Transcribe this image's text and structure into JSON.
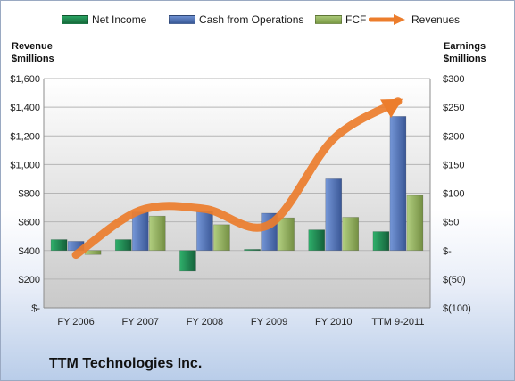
{
  "chart_data": {
    "type": "bar",
    "categories": [
      "FY 2006",
      "FY 2007",
      "FY 2008",
      "FY 2009",
      "FY 2010",
      "TTM 9-2011"
    ],
    "series": [
      {
        "name": "Net Income",
        "axis": "right",
        "values": [
          19,
          19,
          -36,
          2,
          36,
          33
        ]
      },
      {
        "name": "Cash from Operations",
        "axis": "right",
        "values": [
          16,
          67,
          68,
          65,
          125,
          234
        ]
      },
      {
        "name": "FCF",
        "axis": "right",
        "values": [
          -7,
          60,
          45,
          57,
          58,
          96
        ]
      },
      {
        "name": "Revenues",
        "axis": "left",
        "type": "line",
        "values": [
          370,
          680,
          690,
          580,
          1180,
          1440
        ]
      }
    ],
    "left_axis": {
      "label_line1": "Revenue",
      "label_line2": "$millions",
      "min": 0,
      "max": 1600,
      "step": 200,
      "ticks": [
        "$-",
        "$200",
        "$400",
        "$600",
        "$800",
        "$1,000",
        "$1,200",
        "$1,400",
        "$1,600"
      ]
    },
    "right_axis": {
      "label_line1": "Earnings",
      "label_line2": "$millions",
      "min": -100,
      "max": 300,
      "step": 50,
      "ticks": [
        "$(100)",
        "$(50)",
        "$-",
        "$50",
        "$100",
        "$150",
        "$200",
        "$250",
        "$300"
      ]
    },
    "legend_position": "top",
    "grid": true
  },
  "company": "TTM Technologies Inc.",
  "colors": {
    "net_income": "#1f8a4f",
    "cash_from_operations": "#4f73b6",
    "fcf": "#95b65d",
    "revenues": "#ec7d2c"
  }
}
